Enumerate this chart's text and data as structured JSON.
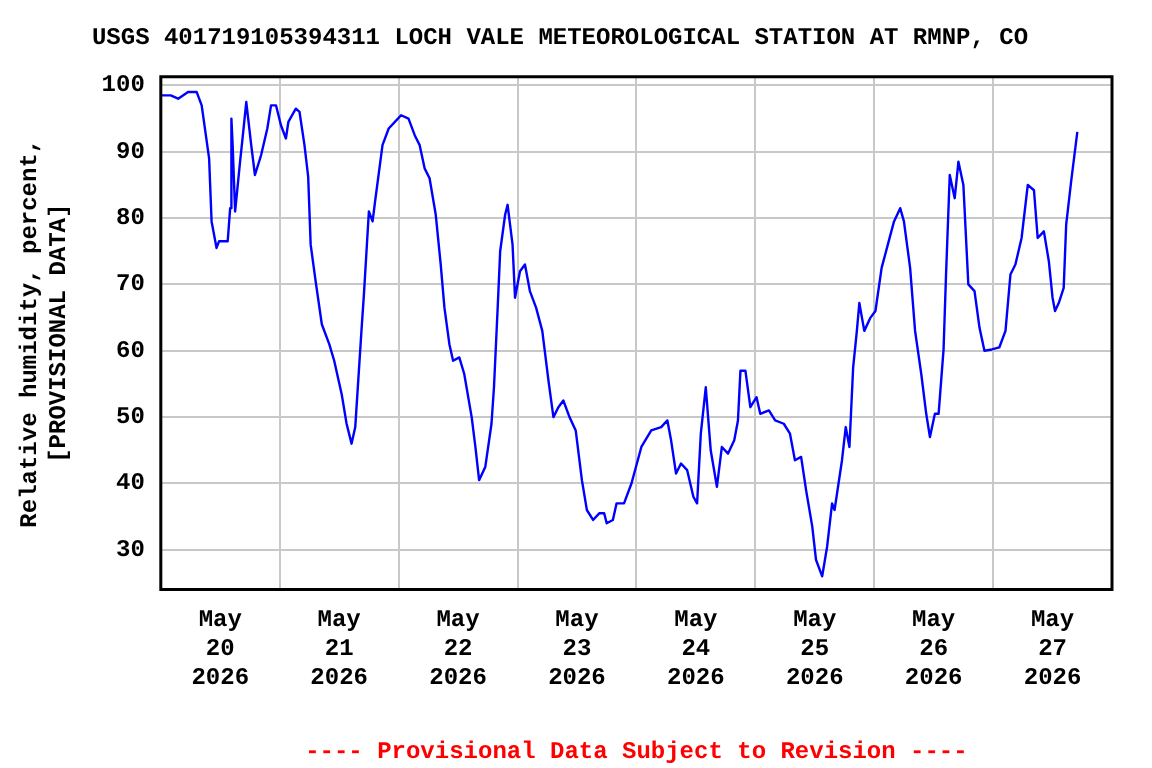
{
  "chart_data": {
    "type": "line",
    "title": "USGS 401719105394311 LOCH VALE METEOROLOGICAL STATION AT RMNP, CO",
    "ylabel": "Relative humidity, percent,\n[PROVISIONAL DATA]",
    "annotations": [
      "---- Provisional Data Subject to Revision ----"
    ],
    "xlim": [
      "2026-05-20T00:00",
      "2026-05-28T00:00"
    ],
    "xticks": [
      {
        "value": "2026-05-20T12:00",
        "label": "May\n20\n2026"
      },
      {
        "value": "2026-05-21T00:00",
        "label": null
      },
      {
        "value": "2026-05-21T12:00",
        "label": "May\n21\n2026"
      },
      {
        "value": "2026-05-22T00:00",
        "label": null
      },
      {
        "value": "2026-05-22T12:00",
        "label": "May\n22\n2026"
      },
      {
        "value": "2026-05-23T00:00",
        "label": null
      },
      {
        "value": "2026-05-23T12:00",
        "label": "May\n23\n2026"
      },
      {
        "value": "2026-05-24T00:00",
        "label": null
      },
      {
        "value": "2026-05-24T12:00",
        "label": "May\n24\n2026"
      },
      {
        "value": "2026-05-25T00:00",
        "label": null
      },
      {
        "value": "2026-05-25T12:00",
        "label": "May\n25\n2026"
      },
      {
        "value": "2026-05-26T00:00",
        "label": null
      },
      {
        "value": "2026-05-26T12:00",
        "label": "May\n26\n2026"
      },
      {
        "value": "2026-05-27T00:00",
        "label": null
      },
      {
        "value": "2026-05-27T12:00",
        "label": "May\n27\n2026"
      }
    ],
    "ylim": [
      24,
      101.3
    ],
    "yticks": [
      30,
      40,
      50,
      60,
      70,
      80,
      90,
      100
    ],
    "grid": true,
    "legend": false,
    "marker": "none",
    "line_style": "solid",
    "series": [
      {
        "color": "#0000ff",
        "x": [
          "2026-05-20T00:15",
          "2026-05-20T02:00",
          "2026-05-20T03:30",
          "2026-05-20T05:30",
          "2026-05-20T07:15",
          "2026-05-20T08:15",
          "2026-05-20T09:00",
          "2026-05-20T09:45",
          "2026-05-20T10:15",
          "2026-05-20T11:15",
          "2026-05-20T11:45",
          "2026-05-20T13:30",
          "2026-05-20T14:00",
          "2026-05-20T14:15",
          "2026-05-20T14:30",
          "2026-05-20T15:00",
          "2026-05-20T16:00",
          "2026-05-20T16:30",
          "2026-05-20T17:15",
          "2026-05-20T18:15",
          "2026-05-20T19:00",
          "2026-05-20T20:15",
          "2026-05-20T21:30",
          "2026-05-20T22:15",
          "2026-05-20T23:15",
          "2026-05-21T00:15",
          "2026-05-21T01:15",
          "2026-05-21T01:45",
          "2026-05-21T03:15",
          "2026-05-21T04:00",
          "2026-05-21T05:00",
          "2026-05-21T05:45",
          "2026-05-21T06:15",
          "2026-05-21T07:15",
          "2026-05-21T08:30",
          "2026-05-21T10:00",
          "2026-05-21T11:00",
          "2026-05-21T12:30",
          "2026-05-21T13:30",
          "2026-05-21T14:30",
          "2026-05-21T15:15",
          "2026-05-21T16:30",
          "2026-05-21T17:00",
          "2026-05-21T18:00",
          "2026-05-21T18:45",
          "2026-05-21T19:15",
          "2026-05-21T20:45",
          "2026-05-21T22:00",
          "2026-05-21T23:15",
          "2026-05-22T00:30",
          "2026-05-22T02:00",
          "2026-05-22T03:15",
          "2026-05-22T04:15",
          "2026-05-22T05:15",
          "2026-05-22T06:15",
          "2026-05-22T07:30",
          "2026-05-22T08:30",
          "2026-05-22T09:15",
          "2026-05-22T10:15",
          "2026-05-22T11:00",
          "2026-05-22T12:15",
          "2026-05-22T13:15",
          "2026-05-22T14:45",
          "2026-05-22T15:30",
          "2026-05-22T16:15",
          "2026-05-22T17:30",
          "2026-05-22T18:45",
          "2026-05-22T19:15",
          "2026-05-22T20:00",
          "2026-05-22T20:30",
          "2026-05-22T21:30",
          "2026-05-22T22:00",
          "2026-05-22T23:00",
          "2026-05-22T23:30",
          "2026-05-23T00:30",
          "2026-05-23T01:30",
          "2026-05-23T02:30",
          "2026-05-23T03:45",
          "2026-05-23T05:00",
          "2026-05-23T06:15",
          "2026-05-23T07:15",
          "2026-05-23T08:15",
          "2026-05-23T09:15",
          "2026-05-23T10:30",
          "2026-05-23T11:45",
          "2026-05-23T13:00",
          "2026-05-23T14:00",
          "2026-05-23T15:15",
          "2026-05-23T16:30",
          "2026-05-23T17:30",
          "2026-05-23T18:00",
          "2026-05-23T19:15",
          "2026-05-23T20:00",
          "2026-05-23T21:30",
          "2026-05-23T23:00",
          "2026-05-24T01:00",
          "2026-05-24T03:00",
          "2026-05-24T05:00",
          "2026-05-24T06:15",
          "2026-05-24T07:00",
          "2026-05-24T08:00",
          "2026-05-24T09:00",
          "2026-05-24T10:15",
          "2026-05-24T11:30",
          "2026-05-24T12:15",
          "2026-05-24T13:00",
          "2026-05-24T14:00",
          "2026-05-24T15:00",
          "2026-05-24T16:15",
          "2026-05-24T17:15",
          "2026-05-24T18:30",
          "2026-05-24T19:45",
          "2026-05-24T20:30",
          "2026-05-24T21:00",
          "2026-05-24T22:00",
          "2026-05-24T23:00",
          "2026-05-25T00:15",
          "2026-05-25T01:00",
          "2026-05-25T02:45",
          "2026-05-25T04:00",
          "2026-05-25T05:45",
          "2026-05-25T07:00",
          "2026-05-25T08:00",
          "2026-05-25T09:15",
          "2026-05-25T10:15",
          "2026-05-25T11:30",
          "2026-05-25T12:15",
          "2026-05-25T13:30",
          "2026-05-25T14:30",
          "2026-05-25T15:30",
          "2026-05-25T16:00",
          "2026-05-25T17:30",
          "2026-05-25T18:15",
          "2026-05-25T19:00",
          "2026-05-25T19:45",
          "2026-05-25T20:30",
          "2026-05-25T21:00",
          "2026-05-25T22:00",
          "2026-05-25T23:15",
          "2026-05-26T00:15",
          "2026-05-26T01:30",
          "2026-05-26T02:45",
          "2026-05-26T04:00",
          "2026-05-26T05:15",
          "2026-05-26T06:00",
          "2026-05-26T07:15",
          "2026-05-26T08:15",
          "2026-05-26T09:30",
          "2026-05-26T10:30",
          "2026-05-26T11:15",
          "2026-05-26T12:15",
          "2026-05-26T13:00",
          "2026-05-26T14:00",
          "2026-05-26T14:30",
          "2026-05-26T15:15",
          "2026-05-26T16:15",
          "2026-05-26T17:00",
          "2026-05-26T18:00",
          "2026-05-26T19:00",
          "2026-05-26T20:15",
          "2026-05-26T21:15",
          "2026-05-26T22:15",
          "2026-05-26T23:45",
          "2026-05-27T01:15",
          "2026-05-27T02:30",
          "2026-05-27T03:30",
          "2026-05-27T04:30",
          "2026-05-27T05:45",
          "2026-05-27T07:00",
          "2026-05-27T08:15",
          "2026-05-27T09:00",
          "2026-05-27T10:15",
          "2026-05-27T11:15",
          "2026-05-27T12:00",
          "2026-05-27T12:30",
          "2026-05-27T13:15",
          "2026-05-27T14:15",
          "2026-05-27T14:45",
          "2026-05-27T15:45",
          "2026-05-27T17:00"
        ],
        "values": [
          98.5,
          98.5,
          98,
          99,
          99,
          97,
          93,
          89,
          79.5,
          75.5,
          76.5,
          76.5,
          81.5,
          95,
          91,
          81,
          88.5,
          92,
          97.5,
          91,
          86.5,
          89.5,
          93.5,
          97,
          97,
          94,
          92,
          94.5,
          96.5,
          96,
          91,
          86.2,
          76,
          70.5,
          64,
          61,
          58.5,
          53.5,
          49,
          46,
          48.5,
          63,
          68.5,
          81,
          79.5,
          82.5,
          91,
          93.5,
          94.5,
          95.5,
          95,
          92.5,
          91,
          87.5,
          86,
          80.5,
          73,
          66.5,
          61,
          58.5,
          59,
          56.5,
          50,
          45.5,
          40.5,
          42.5,
          49,
          54.5,
          66.5,
          75,
          80.5,
          82,
          76,
          68,
          72,
          73,
          69,
          66.5,
          63,
          55.5,
          50,
          51.5,
          52.5,
          50,
          48,
          40.5,
          36,
          34.5,
          35.5,
          35.5,
          34,
          34.5,
          37,
          37,
          40,
          45.5,
          48,
          48.5,
          49.5,
          46.5,
          41.5,
          43,
          42,
          38,
          37,
          47.5,
          54.5,
          45,
          39.5,
          45.5,
          44.5,
          46.5,
          49.5,
          57,
          57,
          51.5,
          53,
          50.5,
          51,
          49.5,
          49,
          47.5,
          43.5,
          44,
          39,
          33.5,
          28.5,
          26,
          30.5,
          37,
          36,
          43.5,
          48.5,
          45.5,
          57.5,
          63,
          67.2,
          63,
          65,
          66,
          72.5,
          76,
          79.5,
          81.5,
          79.5,
          72.5,
          63,
          56.5,
          50.5,
          47,
          50.5,
          50.5,
          60.2,
          71.5,
          86.5,
          83,
          88.5,
          85,
          70,
          69,
          63.5,
          60,
          60.2,
          60.5,
          63,
          71.5,
          73,
          77,
          85,
          84.2,
          77,
          78,
          73.5,
          68,
          66,
          67.2,
          69.5,
          79,
          85.5,
          93
        ]
      }
    ]
  }
}
